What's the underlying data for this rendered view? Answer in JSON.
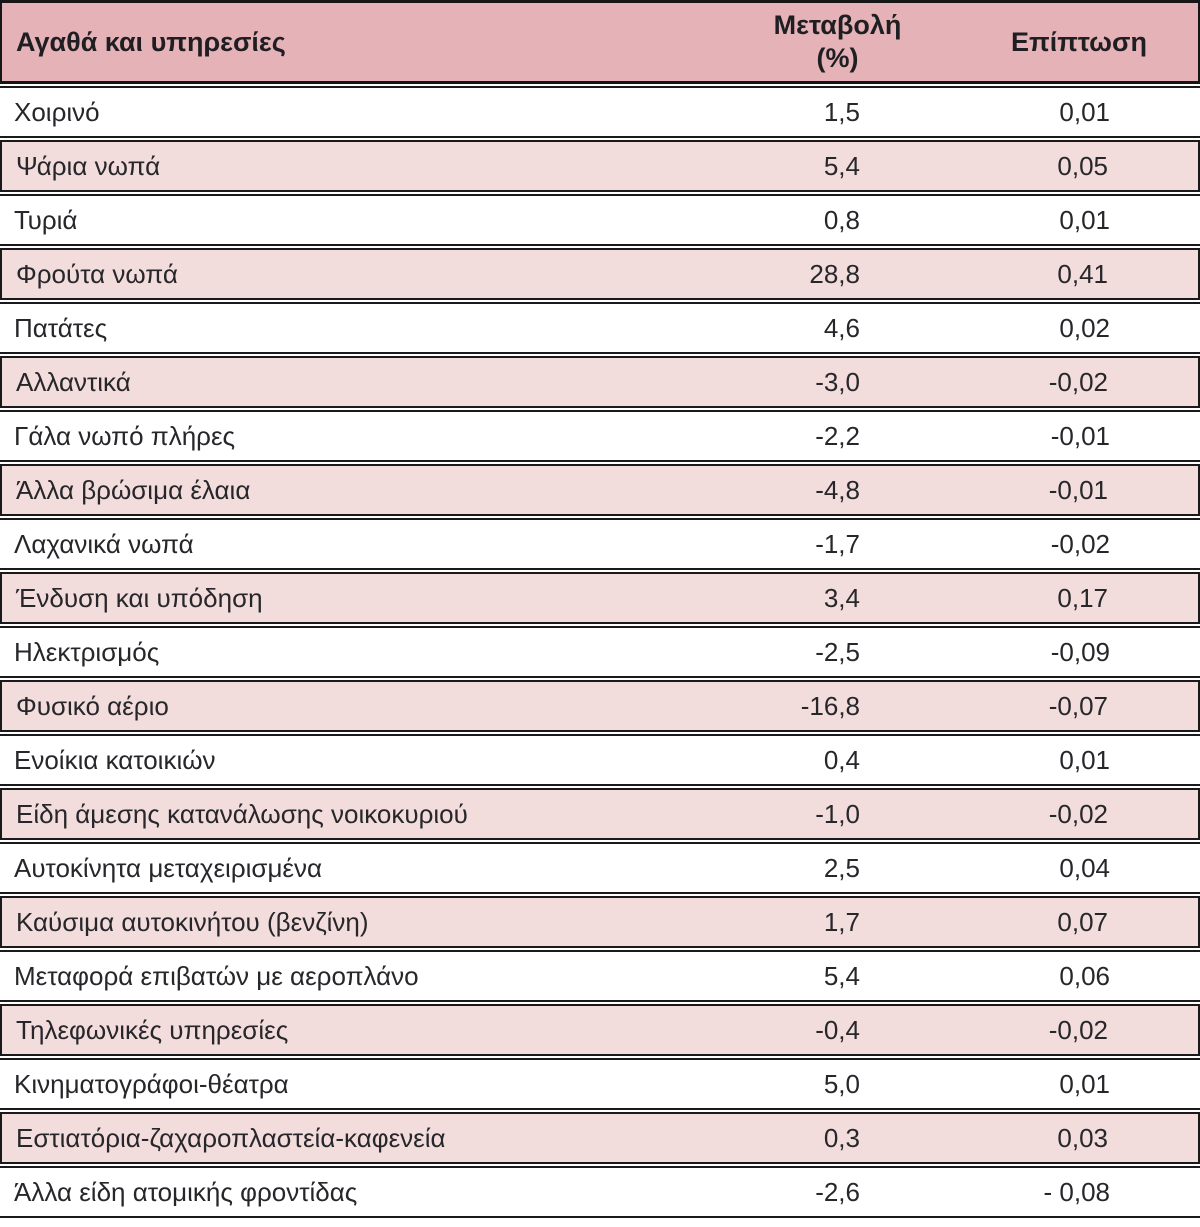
{
  "header": {
    "col1": "Αγαθά και υπηρεσίες",
    "col2_line1": "Μεταβολή",
    "col2_line2": "(%)",
    "col3": "Επίπτωση"
  },
  "rows": [
    {
      "label": "Χοιρινό",
      "change": "1,5",
      "impact": "0,01"
    },
    {
      "label": "Ψάρια νωπά",
      "change": "5,4",
      "impact": "0,05"
    },
    {
      "label": "Τυριά",
      "change": "0,8",
      "impact": "0,01"
    },
    {
      "label": "Φρούτα νωπά",
      "change": "28,8",
      "impact": "0,41"
    },
    {
      "label": "Πατάτες",
      "change": "4,6",
      "impact": "0,02"
    },
    {
      "label": "Αλλαντικά",
      "change": "-3,0",
      "impact": "-0,02"
    },
    {
      "label": "Γάλα νωπό πλήρες",
      "change": "-2,2",
      "impact": "-0,01"
    },
    {
      "label": "Άλλα βρώσιμα έλαια",
      "change": "-4,8",
      "impact": "-0,01"
    },
    {
      "label": "Λαχανικά νωπά",
      "change": "-1,7",
      "impact": "-0,02"
    },
    {
      "label": "Ένδυση και υπόδηση",
      "change": "3,4",
      "impact": "0,17"
    },
    {
      "label": "Ηλεκτρισμός",
      "change": "-2,5",
      "impact": "-0,09"
    },
    {
      "label": "Φυσικό αέριο",
      "change": "-16,8",
      "impact": "-0,07"
    },
    {
      "label": "Ενοίκια κατοικιών",
      "change": "0,4",
      "impact": "0,01"
    },
    {
      "label": "Είδη άμεσης κατανάλωσης νοικοκυριού",
      "change": "-1,0",
      "impact": "-0,02"
    },
    {
      "label": "Αυτοκίνητα μεταχειρισμένα",
      "change": "2,5",
      "impact": "0,04"
    },
    {
      "label": "Καύσιμα αυτοκινήτου (βενζίνη)",
      "change": "1,7",
      "impact": "0,07"
    },
    {
      "label": "Μεταφορά επιβατών με αεροπλάνο",
      "change": "5,4",
      "impact": "0,06"
    },
    {
      "label": "Τηλεφωνικές υπηρεσίες",
      "change": "-0,4",
      "impact": "-0,02"
    },
    {
      "label": "Κινηματογράφοι-θέατρα",
      "change": "5,0",
      "impact": "0,01"
    },
    {
      "label": "Εστιατόρια-ζαχαροπλαστεία-καφενεία",
      "change": "0,3",
      "impact": "0,03"
    },
    {
      "label": "Άλλα είδη ατομικής φροντίδας",
      "change": "-2,6",
      "impact": "- 0,08"
    }
  ],
  "colors": {
    "header_bg": "#e5b3b7",
    "stripe_bg": "#f2dcdc",
    "row_bg": "#ffffff",
    "border": "#1a1a1a",
    "text": "#27272b"
  }
}
